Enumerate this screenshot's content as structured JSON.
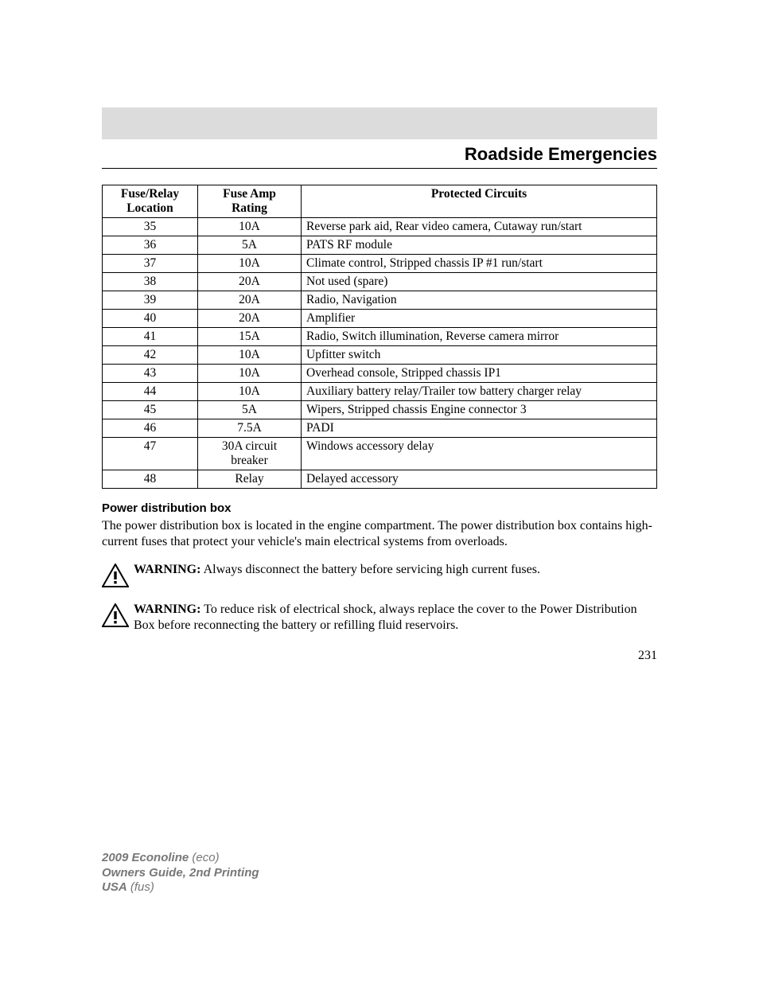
{
  "heading": "Roadside Emergencies",
  "table": {
    "headers": {
      "loc_line1": "Fuse/Relay",
      "loc_line2": "Location",
      "amp_line1": "Fuse Amp",
      "amp_line2": "Rating",
      "circ": "Protected Circuits"
    },
    "rows": [
      {
        "loc": "35",
        "amp": "10A",
        "circ": "Reverse park aid, Rear video camera, Cutaway run/start"
      },
      {
        "loc": "36",
        "amp": "5A",
        "circ": "PATS RF module"
      },
      {
        "loc": "37",
        "amp": "10A",
        "circ": "Climate control, Stripped chassis IP #1 run/start"
      },
      {
        "loc": "38",
        "amp": "20A",
        "circ": "Not used (spare)"
      },
      {
        "loc": "39",
        "amp": "20A",
        "circ": "Radio, Navigation"
      },
      {
        "loc": "40",
        "amp": "20A",
        "circ": "Amplifier"
      },
      {
        "loc": "41",
        "amp": "15A",
        "circ": "Radio, Switch illumination, Reverse camera mirror"
      },
      {
        "loc": "42",
        "amp": "10A",
        "circ": "Upfitter switch"
      },
      {
        "loc": "43",
        "amp": "10A",
        "circ": "Overhead console, Stripped chassis IP1"
      },
      {
        "loc": "44",
        "amp": "10A",
        "circ": "Auxiliary battery relay/Trailer tow battery charger relay"
      },
      {
        "loc": "45",
        "amp": "5A",
        "circ": "Wipers, Stripped chassis Engine connector 3"
      },
      {
        "loc": "46",
        "amp": "7.5A",
        "circ": "PADI"
      },
      {
        "loc": "47",
        "amp": "30A circuit breaker",
        "circ": "Windows accessory delay"
      },
      {
        "loc": "48",
        "amp": "Relay",
        "circ": "Delayed accessory"
      }
    ]
  },
  "pdb": {
    "title": "Power distribution box",
    "body": "The power distribution box is located in the engine compartment. The power distribution box contains high-current fuses that protect your vehicle's main electrical systems from overloads."
  },
  "warnings": [
    {
      "label": "WARNING:",
      "text": " Always disconnect the battery before servicing high current fuses."
    },
    {
      "label": "WARNING:",
      "text": " To reduce risk of electrical shock, always replace the cover to the Power Distribution Box before reconnecting the battery or refilling fluid reservoirs."
    }
  ],
  "page_number": "231",
  "footer": {
    "line1_bold": "2009 Econoline",
    "line1_ital": " (eco)",
    "line2": "Owners Guide, 2nd Printing",
    "line3_bold": "USA",
    "line3_ital": " (fus)"
  },
  "colors": {
    "header_bar": "#dcdcdc",
    "footer_text": "#777777",
    "text": "#000000"
  }
}
